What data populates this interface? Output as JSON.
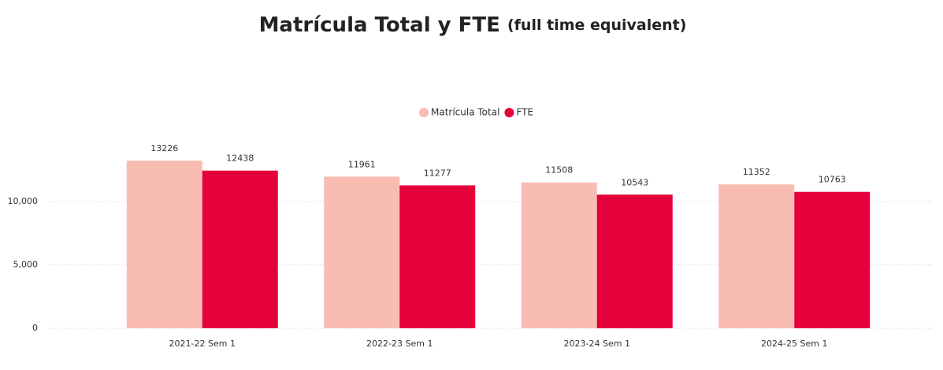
{
  "chart_data": {
    "type": "bar",
    "title": "Matrícula Total y FTE",
    "title_note": "(full time equivalent)",
    "categories": [
      "2021-22 Sem 1",
      "2022-23 Sem 1",
      "2023-24 Sem 1",
      "2024-25 Sem 1"
    ],
    "series": [
      {
        "name": "Matrícula Total",
        "color": "#f9bcb3",
        "values": [
          13226,
          11961,
          11508,
          11352
        ]
      },
      {
        "name": "FTE",
        "color": "#e4003a",
        "values": [
          12438,
          11277,
          10543,
          10763
        ]
      }
    ],
    "ylim": [
      0,
      15000
    ],
    "yticks": [
      0,
      {
        "value": 5000,
        "label": "5,000"
      },
      {
        "value": 10000,
        "label": "10,000"
      }
    ],
    "grid": true,
    "legend": "top"
  }
}
